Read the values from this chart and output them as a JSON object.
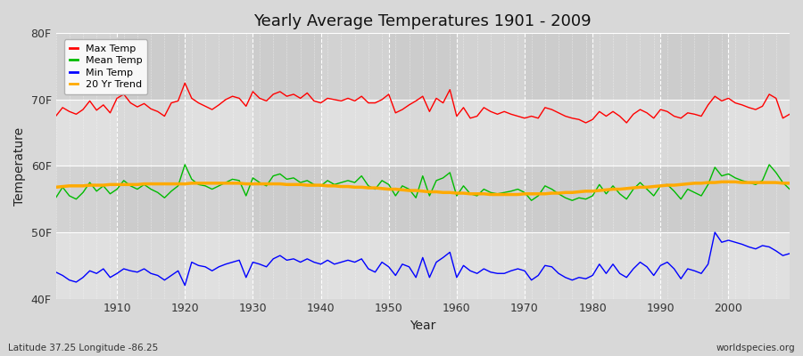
{
  "title": "Yearly Average Temperatures 1901 - 2009",
  "xlabel": "Year",
  "ylabel": "Temperature",
  "bottom_left": "Latitude 37.25 Longitude -86.25",
  "bottom_right": "worldspecies.org",
  "years": [
    1901,
    1902,
    1903,
    1904,
    1905,
    1906,
    1907,
    1908,
    1909,
    1910,
    1911,
    1912,
    1913,
    1914,
    1915,
    1916,
    1917,
    1918,
    1919,
    1920,
    1921,
    1922,
    1923,
    1924,
    1925,
    1926,
    1927,
    1928,
    1929,
    1930,
    1931,
    1932,
    1933,
    1934,
    1935,
    1936,
    1937,
    1938,
    1939,
    1940,
    1941,
    1942,
    1943,
    1944,
    1945,
    1946,
    1947,
    1948,
    1949,
    1950,
    1951,
    1952,
    1953,
    1954,
    1955,
    1956,
    1957,
    1958,
    1959,
    1960,
    1961,
    1962,
    1963,
    1964,
    1965,
    1966,
    1967,
    1968,
    1969,
    1970,
    1971,
    1972,
    1973,
    1974,
    1975,
    1976,
    1977,
    1978,
    1979,
    1980,
    1981,
    1982,
    1983,
    1984,
    1985,
    1986,
    1987,
    1988,
    1989,
    1990,
    1991,
    1992,
    1993,
    1994,
    1995,
    1996,
    1997,
    1998,
    1999,
    2000,
    2001,
    2002,
    2003,
    2004,
    2005,
    2006,
    2007,
    2008,
    2009
  ],
  "max_temp": [
    67.5,
    68.8,
    68.2,
    67.8,
    68.5,
    69.8,
    68.4,
    69.2,
    68.0,
    70.2,
    70.8,
    69.5,
    68.9,
    69.4,
    68.6,
    68.2,
    67.5,
    69.5,
    69.8,
    72.5,
    70.2,
    69.5,
    69.0,
    68.5,
    69.2,
    70.0,
    70.5,
    70.2,
    69.0,
    71.2,
    70.2,
    69.8,
    70.8,
    71.2,
    70.5,
    70.8,
    70.2,
    71.0,
    69.8,
    69.5,
    70.2,
    70.0,
    69.8,
    70.2,
    69.8,
    70.5,
    69.5,
    69.5,
    70.0,
    70.8,
    68.0,
    68.5,
    69.2,
    69.8,
    70.5,
    68.2,
    70.2,
    69.5,
    71.5,
    67.5,
    68.8,
    67.2,
    67.5,
    68.8,
    68.2,
    67.8,
    68.2,
    67.8,
    67.5,
    67.2,
    67.5,
    67.2,
    68.8,
    68.5,
    68.0,
    67.5,
    67.2,
    67.0,
    66.5,
    67.0,
    68.2,
    67.5,
    68.2,
    67.5,
    66.5,
    67.8,
    68.5,
    68.0,
    67.2,
    68.5,
    68.2,
    67.5,
    67.2,
    68.0,
    67.8,
    67.5,
    69.2,
    70.5,
    69.8,
    70.2,
    69.5,
    69.2,
    68.8,
    68.5,
    69.0,
    70.8,
    70.2,
    67.2,
    67.8
  ],
  "mean_temp": [
    55.2,
    56.8,
    55.5,
    55.0,
    56.0,
    57.5,
    56.2,
    57.0,
    55.8,
    56.5,
    57.8,
    57.0,
    56.5,
    57.2,
    56.5,
    56.0,
    55.2,
    56.2,
    57.0,
    60.2,
    58.0,
    57.2,
    57.0,
    56.5,
    57.0,
    57.5,
    58.0,
    57.8,
    55.5,
    58.2,
    57.5,
    57.0,
    58.5,
    58.8,
    58.0,
    58.2,
    57.5,
    57.8,
    57.2,
    57.0,
    57.8,
    57.2,
    57.5,
    57.8,
    57.5,
    58.5,
    57.0,
    56.5,
    57.8,
    57.2,
    55.5,
    57.0,
    56.5,
    55.2,
    58.5,
    55.5,
    57.8,
    58.2,
    59.0,
    55.5,
    57.0,
    55.8,
    55.5,
    56.5,
    56.0,
    55.8,
    56.0,
    56.2,
    56.5,
    56.0,
    54.8,
    55.5,
    57.0,
    56.5,
    55.8,
    55.2,
    54.8,
    55.2,
    55.0,
    55.5,
    57.2,
    55.8,
    57.0,
    55.8,
    55.0,
    56.5,
    57.5,
    56.5,
    55.5,
    57.0,
    57.2,
    56.2,
    55.0,
    56.5,
    56.0,
    55.5,
    57.2,
    59.8,
    58.5,
    58.8,
    58.2,
    57.8,
    57.5,
    57.2,
    57.8,
    60.2,
    59.0,
    57.5,
    56.5
  ],
  "min_temp": [
    44.0,
    43.5,
    42.8,
    42.5,
    43.2,
    44.2,
    43.8,
    44.5,
    43.2,
    43.8,
    44.5,
    44.2,
    44.0,
    44.5,
    43.8,
    43.5,
    42.8,
    43.5,
    44.2,
    42.0,
    45.5,
    45.0,
    44.8,
    44.2,
    44.8,
    45.2,
    45.5,
    45.8,
    43.2,
    45.5,
    45.2,
    44.8,
    46.0,
    46.5,
    45.8,
    46.0,
    45.5,
    46.0,
    45.5,
    45.2,
    45.8,
    45.2,
    45.5,
    45.8,
    45.5,
    46.0,
    44.5,
    44.0,
    45.5,
    44.8,
    43.5,
    45.2,
    44.8,
    43.2,
    46.2,
    43.2,
    45.5,
    46.2,
    47.0,
    43.2,
    45.0,
    44.2,
    43.8,
    44.5,
    44.0,
    43.8,
    43.8,
    44.2,
    44.5,
    44.2,
    42.8,
    43.5,
    45.0,
    44.8,
    43.8,
    43.2,
    42.8,
    43.2,
    43.0,
    43.5,
    45.2,
    43.8,
    45.2,
    43.8,
    43.2,
    44.5,
    45.5,
    44.8,
    43.5,
    45.0,
    45.5,
    44.5,
    43.0,
    44.5,
    44.2,
    43.8,
    45.2,
    50.0,
    48.5,
    48.8,
    48.5,
    48.2,
    47.8,
    47.5,
    48.0,
    47.8,
    47.2,
    46.5,
    46.8
  ],
  "trend_mean": [
    56.8,
    56.9,
    57.0,
    57.0,
    57.0,
    57.1,
    57.1,
    57.1,
    57.2,
    57.2,
    57.2,
    57.2,
    57.2,
    57.3,
    57.3,
    57.3,
    57.3,
    57.3,
    57.3,
    57.3,
    57.4,
    57.4,
    57.4,
    57.4,
    57.4,
    57.4,
    57.4,
    57.4,
    57.3,
    57.3,
    57.3,
    57.3,
    57.3,
    57.3,
    57.2,
    57.2,
    57.2,
    57.1,
    57.1,
    57.1,
    57.0,
    57.0,
    56.9,
    56.9,
    56.8,
    56.8,
    56.7,
    56.7,
    56.6,
    56.5,
    56.5,
    56.4,
    56.3,
    56.3,
    56.2,
    56.1,
    56.1,
    56.0,
    56.0,
    55.9,
    55.9,
    55.8,
    55.8,
    55.8,
    55.7,
    55.7,
    55.7,
    55.7,
    55.7,
    55.8,
    55.8,
    55.8,
    55.8,
    55.9,
    55.9,
    56.0,
    56.0,
    56.1,
    56.2,
    56.2,
    56.3,
    56.4,
    56.5,
    56.5,
    56.6,
    56.7,
    56.8,
    56.8,
    56.9,
    57.0,
    57.1,
    57.1,
    57.2,
    57.3,
    57.4,
    57.4,
    57.5,
    57.5,
    57.6,
    57.6,
    57.6,
    57.5,
    57.5,
    57.5,
    57.5,
    57.5,
    57.5,
    57.4,
    57.4
  ],
  "ylim": [
    40,
    80
  ],
  "yticks": [
    40,
    50,
    60,
    70,
    80
  ],
  "ytick_labels": [
    "40F",
    "50F",
    "60F",
    "70F",
    "80F"
  ],
  "bg_color": "#d8d8d8",
  "plot_bg_color": "#d8d8d8",
  "band_color_light": "#e0e0e0",
  "band_color_dark": "#cccccc",
  "max_color": "#ff0000",
  "mean_color": "#00bb00",
  "min_color": "#0000ff",
  "trend_color": "#ffaa00",
  "grid_color": "#ffffff",
  "legend_labels": [
    "Max Temp",
    "Mean Temp",
    "Min Temp",
    "20 Yr Trend"
  ],
  "legend_colors": [
    "#ff0000",
    "#00bb00",
    "#0000ff",
    "#ffaa00"
  ],
  "xtick_positions": [
    1910,
    1920,
    1930,
    1940,
    1950,
    1960,
    1970,
    1980,
    1990,
    2000
  ],
  "xtick_labels": [
    "1910",
    "1920",
    "1930",
    "1940",
    "1950",
    "1960",
    "1970",
    "1980",
    "1990",
    "2000"
  ]
}
